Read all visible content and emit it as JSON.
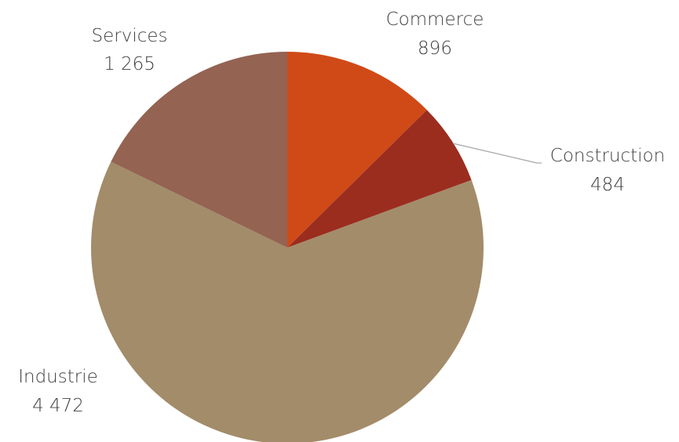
{
  "chart_data": {
    "type": "pie",
    "categories": [
      "Commerce",
      "Construction",
      "Industrie",
      "Services"
    ],
    "values": [
      896,
      484,
      4472,
      1265
    ],
    "value_labels": [
      "896",
      "484",
      "4 472",
      "1 265"
    ],
    "colors": [
      "#d04a17",
      "#9b2d1f",
      "#a38c6a",
      "#946352"
    ],
    "start_angle_deg": 0,
    "direction": "clockwise",
    "legend": "none",
    "data_labels": "outside"
  }
}
